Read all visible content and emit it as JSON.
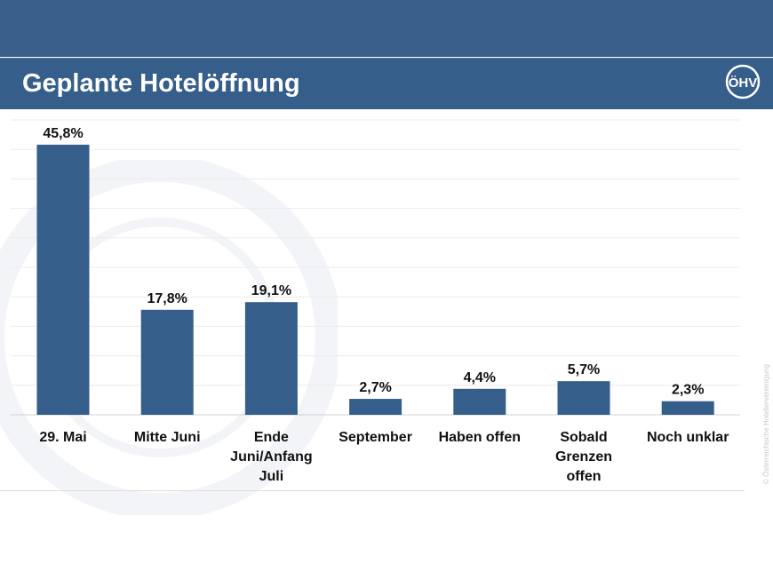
{
  "header": {
    "title": "Geplante Hotelöffnung",
    "logo_text": "ÖHV"
  },
  "copyright": "© Österreichische Hoteliervereinigung",
  "colors": {
    "bar": "#365e8b",
    "header": "#3a5f88",
    "grid": "#ececec"
  },
  "chart_data": {
    "type": "bar",
    "title": "Geplante Hotelöffnung",
    "categories": [
      [
        "29. Mai"
      ],
      [
        "Mitte Juni"
      ],
      [
        "Ende",
        "Juni/Anfang",
        "Juli"
      ],
      [
        "September"
      ],
      [
        "Haben offen"
      ],
      [
        "Sobald",
        "Grenzen",
        "offen"
      ],
      [
        "Noch unklar"
      ]
    ],
    "values": [
      45.8,
      17.8,
      19.1,
      2.7,
      4.4,
      5.7,
      2.3
    ],
    "data_labels": [
      "45,8%",
      "17,8%",
      "19,1%",
      "2,7%",
      "4,4%",
      "5,7%",
      "2,3%"
    ],
    "ylim": [
      0,
      50
    ],
    "grid": true,
    "xlabel": "",
    "ylabel": ""
  }
}
